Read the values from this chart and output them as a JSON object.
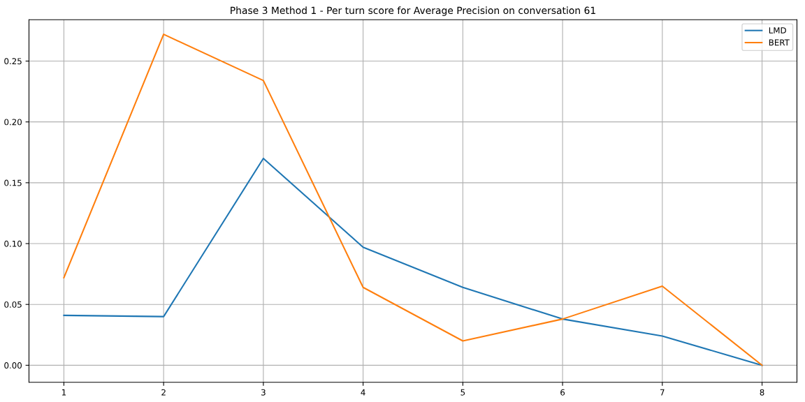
{
  "chart_data": {
    "type": "line",
    "title": "Phase 3 Method 1 - Per turn score for Average Precision on conversation 61",
    "x": [
      1,
      2,
      3,
      4,
      5,
      6,
      7,
      8
    ],
    "series": [
      {
        "name": "LMD",
        "color": "#1f77b4",
        "values": [
          0.041,
          0.04,
          0.17,
          0.097,
          0.064,
          0.038,
          0.024,
          0.0
        ]
      },
      {
        "name": "BERT",
        "color": "#ff7f0e",
        "values": [
          0.072,
          0.272,
          0.234,
          0.064,
          0.02,
          0.038,
          0.065,
          0.0
        ]
      }
    ],
    "xlim": [
      0.65,
      8.35
    ],
    "xticks": [
      1,
      2,
      3,
      4,
      5,
      6,
      7,
      8
    ],
    "ylim": [
      -0.014,
      0.284
    ],
    "yticks": [
      {
        "value": 0,
        "label": "0.00"
      },
      {
        "value": 0.05,
        "label": "0.05"
      },
      {
        "value": 0.1,
        "label": "0.10"
      },
      {
        "value": 0.15,
        "label": "0.15"
      },
      {
        "value": 0.2,
        "label": "0.20"
      },
      {
        "value": 0.25,
        "label": "0.25"
      }
    ],
    "grid": true,
    "legend": "top right"
  }
}
